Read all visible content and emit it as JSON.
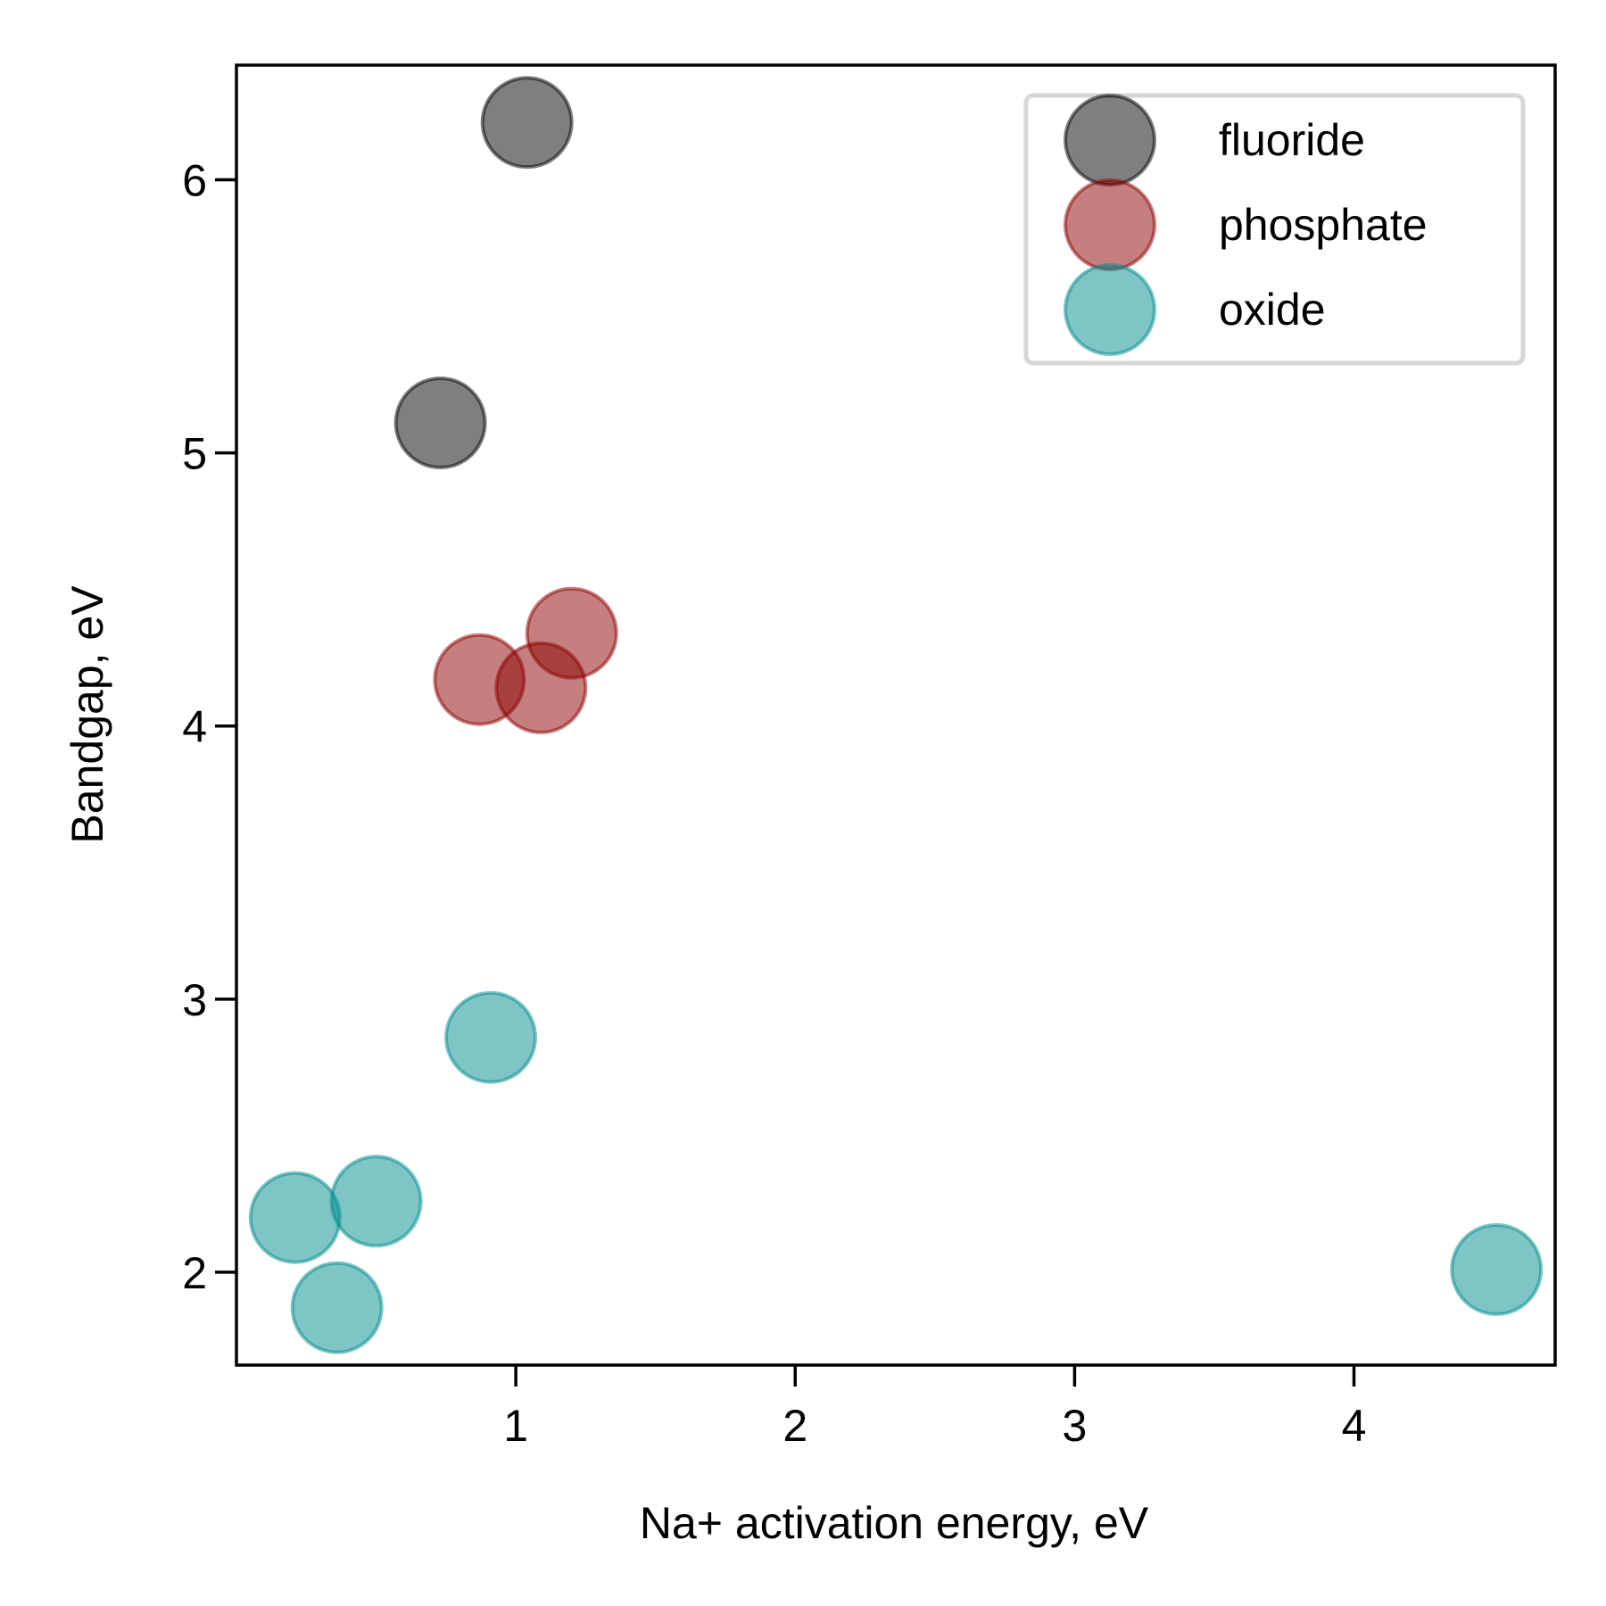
{
  "chart_data": {
    "type": "scatter",
    "xlabel": "Na+ activation energy, eV",
    "ylabel": "Bandgap, eV",
    "xlim": [
      0.0,
      4.72
    ],
    "ylim": [
      1.66,
      6.42
    ],
    "xticks": [
      1,
      2,
      3,
      4
    ],
    "yticks": [
      2,
      3,
      4,
      5,
      6
    ],
    "grid": false,
    "legend_position": "top-right",
    "series": [
      {
        "name": "fluoride",
        "color": "#000000",
        "alpha": 0.5,
        "points": [
          {
            "x": 1.04,
            "y": 6.21
          },
          {
            "x": 0.73,
            "y": 5.11
          }
        ]
      },
      {
        "name": "phosphate",
        "color": "#8b0000",
        "alpha": 0.5,
        "points": [
          {
            "x": 1.2,
            "y": 4.34
          },
          {
            "x": 0.87,
            "y": 4.17
          },
          {
            "x": 1.09,
            "y": 4.14
          }
        ]
      },
      {
        "name": "oxide",
        "color": "#008b8b",
        "alpha": 0.5,
        "points": [
          {
            "x": 0.91,
            "y": 2.86
          },
          {
            "x": 0.5,
            "y": 2.26
          },
          {
            "x": 0.21,
            "y": 2.2
          },
          {
            "x": 0.36,
            "y": 1.87
          },
          {
            "x": 4.51,
            "y": 2.01
          }
        ]
      }
    ]
  }
}
